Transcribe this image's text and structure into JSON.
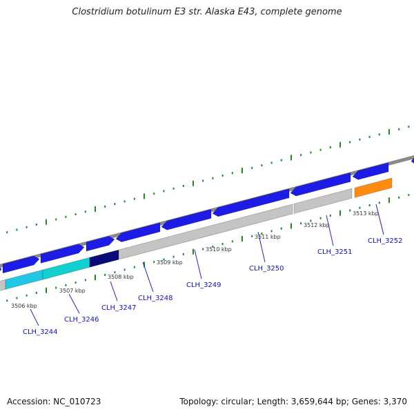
{
  "title": "Clostridium botulinum E3 str. Alaska E43, complete genome",
  "footer": {
    "accession": "Accession: NC_010723",
    "stats": "Topology: circular; Length: 3,659,644 bp; Genes: 3,370"
  },
  "colors": {
    "backbone": "#8a8a8a",
    "tick": "#1a8a1a",
    "forward_gene": "#1c1ce6",
    "label_line": "#2020c8",
    "hypothetical_gene": "#c4c4c4",
    "cyan_gene": "#20c8e6",
    "teal_gene": "#10d0d0",
    "navy_gene": "#0a0a78",
    "orange_gene": "#ff8c10"
  },
  "kbp_ticks": [
    "3506 kbp",
    "3507 kbp",
    "3508 kbp",
    "3509 kbp",
    "3510 kbp",
    "3511 kbp",
    "3512 kbp",
    "3513 kbp"
  ],
  "gene_labels": [
    "CLH_3244",
    "CLH_3246",
    "CLH_3247",
    "CLH_3248",
    "CLH_3249",
    "CLH_3250",
    "CLH_3251",
    "CLH_3252"
  ]
}
